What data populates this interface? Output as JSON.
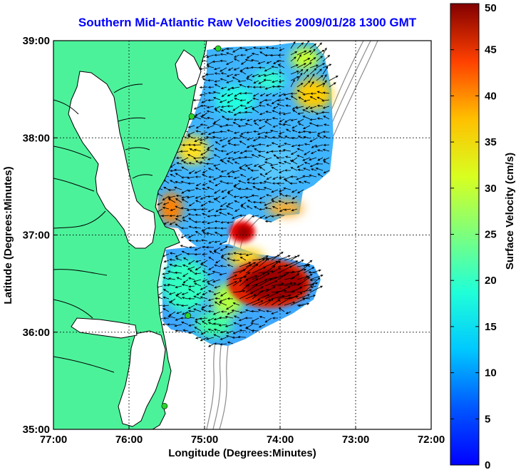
{
  "title": "Southern Mid-Atlantic Raw Velocities 2009/01/28 1300 GMT",
  "xaxis": {
    "label": "Longitude (Degrees:Minutes)",
    "ticks": [
      "77:00",
      "76:00",
      "75:00",
      "74:00",
      "73:00",
      "72:00"
    ],
    "range": [
      -77,
      -72
    ]
  },
  "yaxis": {
    "label": "Latitude (Degrees:Minutes)",
    "ticks": [
      "39:00",
      "38:00",
      "37:00",
      "36:00",
      "35:00"
    ],
    "range": [
      35,
      39
    ]
  },
  "colorbar": {
    "label": "Surface Velocity (cm/s)",
    "ticks": [
      "50",
      "45",
      "40",
      "35",
      "30",
      "25",
      "20",
      "15",
      "10",
      "5",
      "0"
    ],
    "range": [
      0,
      50
    ]
  },
  "colors": {
    "land": "#4cf29a",
    "title": "#0000ff",
    "coastline": "#000000",
    "bathymetry": "#8c8c8c",
    "station": "#2ad42a"
  },
  "map": {
    "grid": "dotted",
    "stations": [
      {
        "lon": -74.82,
        "lat": 38.92
      },
      {
        "lon": -75.17,
        "lat": 38.22
      },
      {
        "lon": -75.22,
        "lat": 36.17
      },
      {
        "lon": -75.53,
        "lat": 35.24
      }
    ]
  }
}
